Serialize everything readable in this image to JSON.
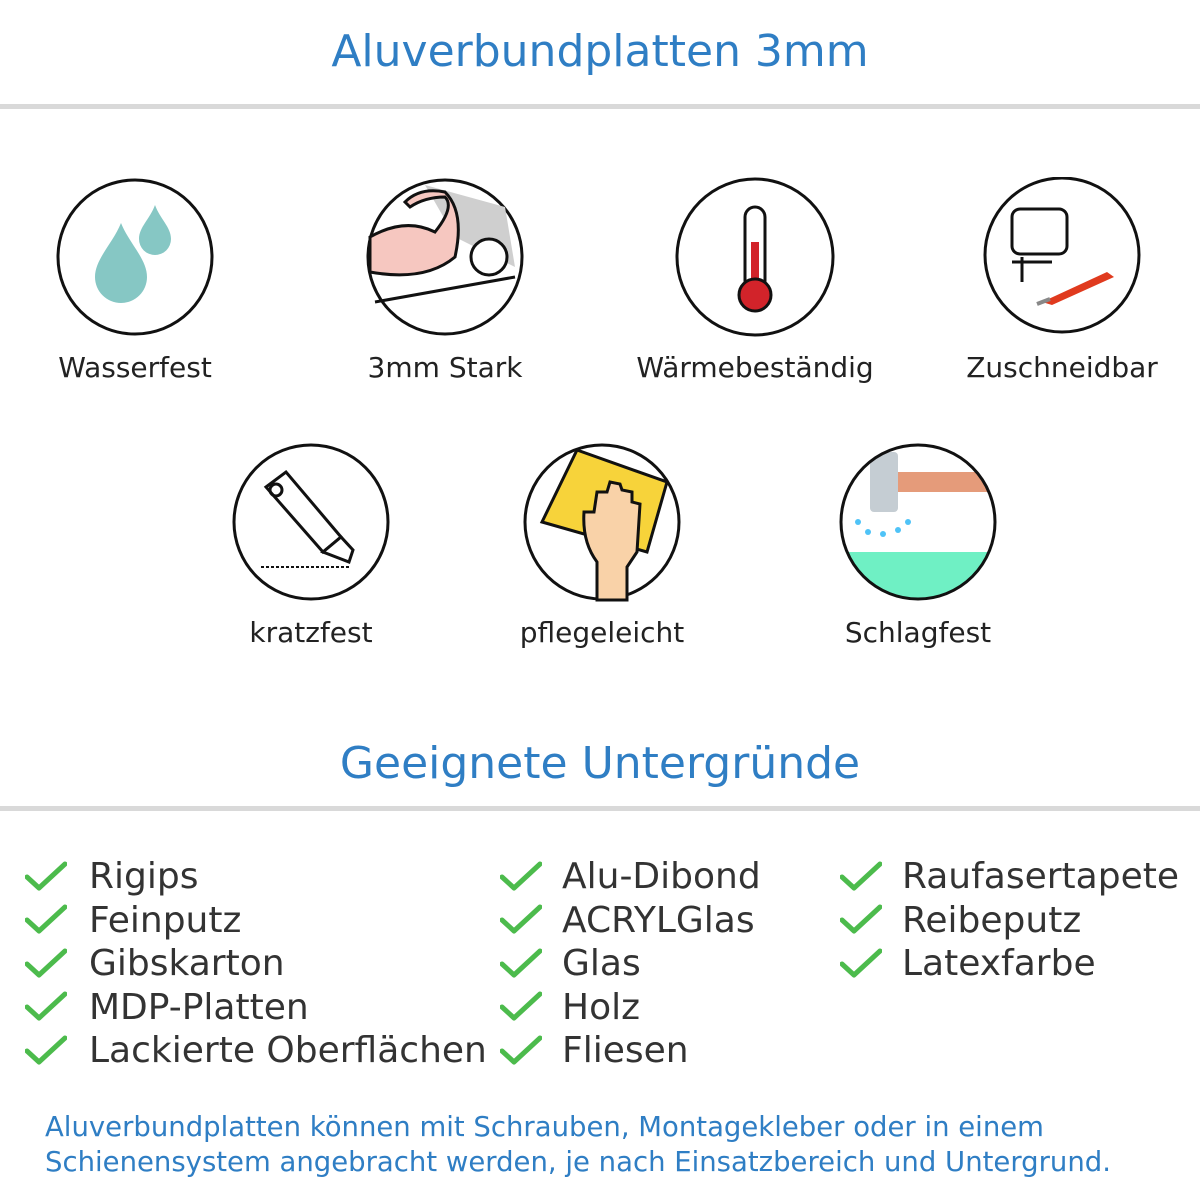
{
  "header": {
    "title": "Aluverbundplatten 3mm"
  },
  "features": [
    {
      "label": "Wasserfest",
      "icon": "water-drops-icon"
    },
    {
      "label": "3mm Stark",
      "icon": "strong-arm-icon"
    },
    {
      "label": "Wärmebeständig",
      "icon": "thermometer-icon"
    },
    {
      "label": "Zuschneidbar",
      "icon": "jigsaw-cutter-icon"
    },
    {
      "label": "kratzfest",
      "icon": "box-cutter-icon"
    },
    {
      "label": "pflegeleicht",
      "icon": "hand-sponge-icon"
    },
    {
      "label": "Schlagfest",
      "icon": "hammer-impact-icon"
    }
  ],
  "substrates": {
    "title": "Geeignete Untergründe",
    "columns": [
      [
        "Rigips",
        "Feinputz",
        "Gibskarton",
        "MDP-Platten",
        "Lackierte Oberflächen"
      ],
      [
        "Alu-Dibond",
        "ACRYLGlas",
        "Glas",
        "Holz",
        "Fliesen"
      ],
      [
        "Raufasertapete",
        "Reibeputz",
        "Latexfarbe"
      ]
    ]
  },
  "footer": {
    "line1": "Aluverbundplatten können mit Schrauben, Montagekleber oder in einem",
    "line2": "Schienensystem angebracht werden, je nach Einsatzbereich und Untergrund."
  },
  "colors": {
    "accent": "#2f7ec4",
    "check": "#4cbb4c",
    "divider": "#d9d9d9"
  }
}
